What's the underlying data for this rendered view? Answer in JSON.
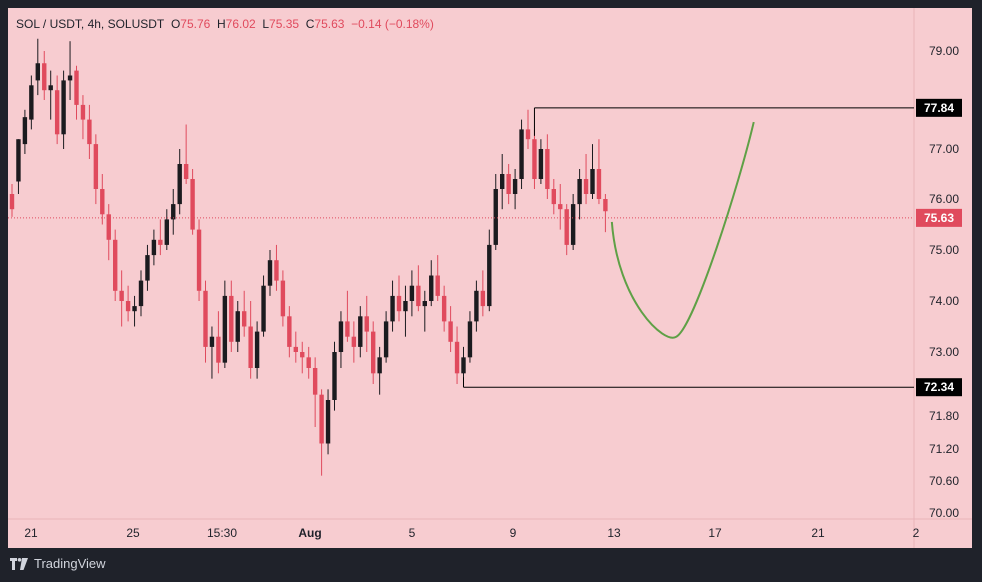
{
  "header": {
    "symbol": "SOL / USDT, 4h, SOLUSDT",
    "o_label": "O",
    "o_value": "75.76",
    "h_label": "H",
    "h_value": "76.02",
    "l_label": "L",
    "l_value": "75.35",
    "c_label": "C",
    "c_value": "75.63",
    "change": "−0.14 (−0.18%)"
  },
  "branding": {
    "name": "TradingView"
  },
  "colors": {
    "background": "#f7ccd0",
    "up": "#1b1b1f",
    "down": "#e04a5d",
    "projection": "#5fa046",
    "frame": "#1f222a"
  },
  "chart_data": {
    "type": "candlestick",
    "y_ticks": [
      "79.00",
      "77.00",
      "76.00",
      "75.00",
      "74.00",
      "73.00",
      "71.80",
      "71.20",
      "70.60",
      "70.00"
    ],
    "y_tick_values": [
      79.0,
      77.0,
      76.0,
      75.0,
      74.0,
      73.0,
      71.8,
      71.2,
      70.6,
      70.0
    ],
    "x_ticks": [
      "21",
      "25",
      "15:30",
      "Aug",
      "5",
      "9",
      "13",
      "17",
      "21",
      "2"
    ],
    "x_tick_bold": [
      false,
      false,
      false,
      true,
      false,
      false,
      false,
      false,
      false,
      false
    ],
    "current_price": "75.63",
    "levels": [
      {
        "label": "77.84",
        "value": 77.84
      },
      {
        "label": "72.34",
        "value": 72.34
      }
    ],
    "ohlc_series": [
      [
        76.1,
        76.3,
        75.65,
        75.8
      ],
      [
        76.35,
        77.2,
        76.1,
        77.2
      ],
      [
        77.1,
        77.8,
        76.9,
        77.65
      ],
      [
        77.6,
        78.5,
        77.4,
        78.3
      ],
      [
        78.4,
        79.25,
        78.1,
        78.75
      ],
      [
        78.75,
        79.0,
        78.0,
        78.2
      ],
      [
        78.2,
        78.6,
        77.6,
        78.3
      ],
      [
        78.2,
        78.5,
        77.1,
        77.3
      ],
      [
        77.3,
        78.6,
        77.0,
        78.4
      ],
      [
        78.4,
        79.2,
        78.0,
        78.5
      ],
      [
        78.6,
        78.7,
        77.6,
        77.9
      ],
      [
        77.9,
        78.1,
        77.2,
        77.6
      ],
      [
        77.6,
        77.9,
        76.8,
        77.1
      ],
      [
        77.1,
        77.3,
        75.9,
        76.2
      ],
      [
        76.2,
        76.5,
        75.5,
        75.7
      ],
      [
        75.7,
        75.9,
        74.8,
        75.2
      ],
      [
        75.2,
        75.4,
        74.0,
        74.2
      ],
      [
        74.2,
        74.6,
        73.5,
        74.0
      ],
      [
        74.0,
        74.3,
        73.6,
        73.8
      ],
      [
        73.8,
        74.1,
        73.5,
        73.9
      ],
      [
        73.9,
        74.6,
        73.7,
        74.4
      ],
      [
        74.4,
        75.1,
        74.2,
        74.9
      ],
      [
        74.9,
        75.4,
        74.7,
        75.2
      ],
      [
        75.2,
        75.6,
        74.9,
        75.1
      ],
      [
        75.1,
        75.8,
        75.0,
        75.6
      ],
      [
        75.6,
        76.2,
        75.3,
        75.9
      ],
      [
        75.9,
        77.0,
        75.7,
        76.7
      ],
      [
        76.7,
        77.5,
        76.3,
        76.4
      ],
      [
        76.4,
        76.6,
        75.3,
        75.4
      ],
      [
        75.4,
        75.6,
        74.0,
        74.2
      ],
      [
        74.2,
        74.4,
        72.8,
        73.1
      ],
      [
        73.1,
        73.5,
        72.5,
        73.3
      ],
      [
        73.3,
        73.8,
        72.6,
        72.8
      ],
      [
        72.8,
        74.4,
        72.7,
        74.1
      ],
      [
        74.1,
        74.4,
        73.0,
        73.2
      ],
      [
        73.2,
        74.0,
        73.0,
        73.8
      ],
      [
        73.8,
        74.2,
        73.3,
        73.5
      ],
      [
        73.5,
        74.0,
        72.5,
        72.7
      ],
      [
        72.7,
        73.6,
        72.5,
        73.4
      ],
      [
        73.4,
        74.5,
        73.3,
        74.3
      ],
      [
        74.3,
        75.0,
        74.1,
        74.8
      ],
      [
        74.8,
        75.1,
        74.2,
        74.4
      ],
      [
        74.4,
        74.6,
        73.5,
        73.7
      ],
      [
        73.7,
        73.9,
        72.9,
        73.1
      ],
      [
        73.1,
        73.4,
        72.8,
        73.0
      ],
      [
        73.0,
        73.2,
        72.6,
        72.9
      ],
      [
        72.9,
        73.1,
        72.5,
        72.7
      ],
      [
        72.7,
        72.9,
        71.6,
        72.2
      ],
      [
        72.2,
        72.3,
        70.7,
        71.3
      ],
      [
        71.3,
        72.3,
        71.1,
        72.1
      ],
      [
        72.1,
        73.2,
        71.9,
        73.0
      ],
      [
        73.0,
        73.8,
        72.7,
        73.6
      ],
      [
        73.6,
        74.2,
        73.2,
        73.3
      ],
      [
        73.3,
        73.6,
        72.8,
        73.1
      ],
      [
        73.1,
        73.9,
        72.9,
        73.7
      ],
      [
        73.7,
        74.1,
        73.0,
        73.4
      ],
      [
        73.4,
        73.6,
        72.4,
        72.6
      ],
      [
        72.6,
        73.1,
        72.2,
        72.9
      ],
      [
        72.9,
        73.8,
        72.8,
        73.6
      ],
      [
        73.6,
        74.4,
        73.4,
        74.1
      ],
      [
        74.1,
        74.5,
        73.6,
        73.8
      ],
      [
        73.8,
        74.3,
        73.3,
        74.0
      ],
      [
        74.0,
        74.6,
        73.7,
        74.3
      ],
      [
        74.3,
        74.7,
        73.8,
        73.9
      ],
      [
        73.9,
        74.2,
        73.4,
        74.0
      ],
      [
        74.0,
        74.8,
        73.9,
        74.5
      ],
      [
        74.5,
        74.9,
        74.0,
        74.1
      ],
      [
        74.1,
        74.3,
        73.4,
        73.6
      ],
      [
        73.6,
        73.9,
        73.0,
        73.2
      ],
      [
        73.2,
        73.5,
        72.4,
        72.6
      ],
      [
        72.6,
        73.1,
        72.35,
        72.9
      ],
      [
        72.9,
        73.8,
        72.8,
        73.6
      ],
      [
        73.6,
        74.4,
        73.4,
        74.2
      ],
      [
        74.2,
        74.6,
        73.7,
        73.9
      ],
      [
        73.9,
        75.4,
        73.8,
        75.1
      ],
      [
        75.1,
        76.5,
        75.0,
        76.2
      ],
      [
        76.2,
        76.9,
        75.8,
        76.5
      ],
      [
        76.5,
        76.7,
        75.9,
        76.1
      ],
      [
        76.1,
        76.6,
        75.8,
        76.4
      ],
      [
        76.4,
        77.6,
        76.2,
        77.4
      ],
      [
        77.4,
        77.8,
        77.0,
        77.2
      ],
      [
        77.2,
        77.4,
        76.2,
        76.4
      ],
      [
        76.4,
        77.2,
        76.3,
        77.0
      ],
      [
        77.0,
        77.3,
        76.0,
        76.2
      ],
      [
        76.2,
        76.4,
        75.7,
        75.9
      ],
      [
        75.9,
        76.3,
        75.4,
        75.8
      ],
      [
        75.8,
        75.9,
        74.9,
        75.1
      ],
      [
        75.1,
        76.1,
        75.0,
        75.9
      ],
      [
        75.9,
        76.6,
        75.6,
        76.4
      ],
      [
        76.4,
        76.9,
        75.9,
        76.1
      ],
      [
        76.1,
        77.1,
        76.0,
        76.6
      ],
      [
        76.6,
        77.2,
        75.9,
        76.0
      ],
      [
        76.0,
        76.1,
        75.35,
        75.76
      ]
    ],
    "projection": {
      "start": [
        93,
        75.55
      ],
      "trough": [
        103,
        73.3
      ],
      "end": [
        115,
        77.55
      ]
    }
  }
}
